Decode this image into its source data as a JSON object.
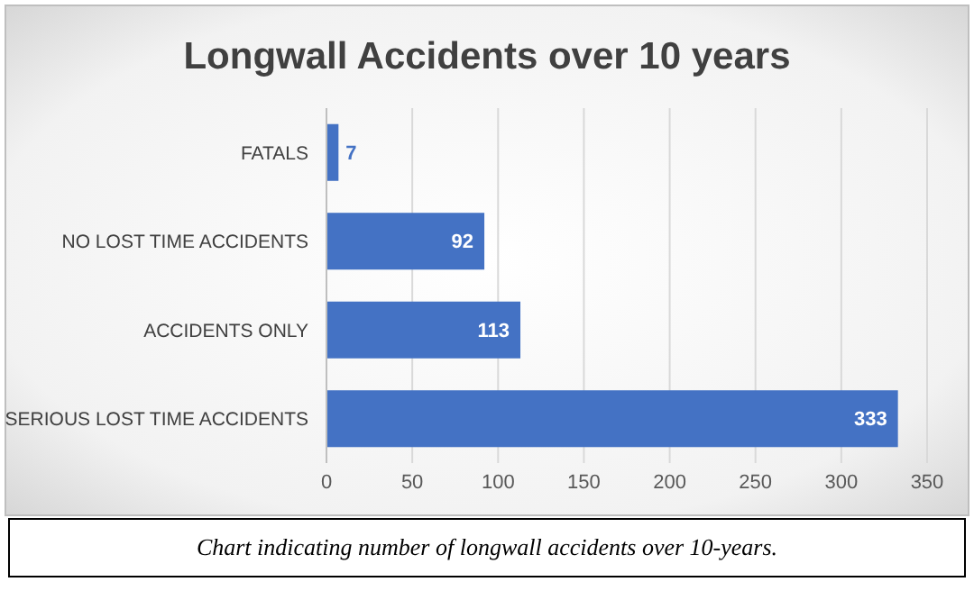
{
  "chart_data": {
    "type": "bar",
    "orientation": "horizontal",
    "title": "Longwall Accidents over 10 years",
    "categories": [
      "FATALS",
      "NO LOST TIME ACCIDENTS",
      "ACCIDENTS ONLY",
      "SERIOUS LOST TIME ACCIDENTS"
    ],
    "values": [
      7,
      92,
      113,
      333
    ],
    "color": "#4472c4",
    "xlim": [
      0,
      350
    ],
    "xticks": [
      0,
      50,
      100,
      150,
      200,
      250,
      300,
      350
    ],
    "grid": "x",
    "data_labels": true,
    "annotations": [
      "Chart indicating number of longwall accidents over 10-years."
    ]
  }
}
